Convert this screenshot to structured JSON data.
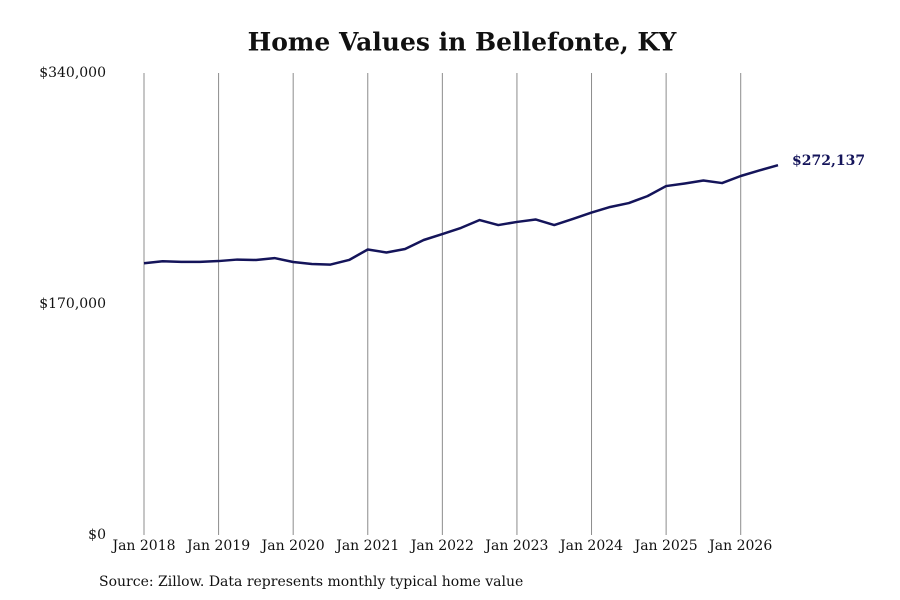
{
  "chart_data": {
    "type": "line",
    "title": "Home Values in Bellefonte, KY",
    "source": "Source: Zillow. Data represents monthly typical home value",
    "x": [
      2018,
      2018.25,
      2018.5,
      2018.75,
      2019,
      2019.25,
      2019.5,
      2019.75,
      2020,
      2020.25,
      2020.5,
      2020.75,
      2021,
      2021.25,
      2021.5,
      2021.75,
      2022,
      2022.25,
      2022.5,
      2022.75,
      2023,
      2023.25,
      2023.5,
      2023.75,
      2024,
      2024.25,
      2024.5,
      2024.75,
      2025,
      2025.25,
      2025.5,
      2025.75,
      2026,
      2026.25,
      2026.5
    ],
    "series": [
      {
        "name": "Home value",
        "color": "#14145a",
        "values": [
          200000,
          201500,
          201000,
          201000,
          201600,
          202700,
          202400,
          203800,
          200900,
          199400,
          199000,
          202400,
          210100,
          207900,
          210500,
          217100,
          221500,
          226000,
          231800,
          228100,
          230400,
          232200,
          228100,
          232600,
          237300,
          241400,
          244300,
          249400,
          256800,
          258700,
          260900,
          259000,
          264200,
          268300,
          272137
        ],
        "value_labels": [
          null,
          null,
          null,
          null,
          null,
          null,
          null,
          null,
          null,
          null,
          null,
          null,
          null,
          null,
          null,
          null,
          null,
          null,
          null,
          null,
          null,
          null,
          null,
          null,
          null,
          null,
          null,
          null,
          null,
          null,
          null,
          null,
          null,
          null,
          "$272,137"
        ]
      }
    ],
    "xlim": [
      2018,
      2026.5
    ],
    "xticks": [
      {
        "value": 2018,
        "label": "Jan 2018"
      },
      {
        "value": 2019,
        "label": "Jan 2019"
      },
      {
        "value": 2020,
        "label": "Jan 2020"
      },
      {
        "value": 2021,
        "label": "Jan 2021"
      },
      {
        "value": 2022,
        "label": "Jan 2022"
      },
      {
        "value": 2023,
        "label": "Jan 2023"
      },
      {
        "value": 2024,
        "label": "Jan 2024"
      },
      {
        "value": 2025,
        "label": "Jan 2025"
      },
      {
        "value": 2026,
        "label": "Jan 2026"
      }
    ],
    "ylim": [
      0,
      340000
    ],
    "yticks": [
      {
        "value": 0,
        "label": "$0"
      },
      {
        "value": 170000,
        "label": "$170,000"
      },
      {
        "value": 340000,
        "label": "$340,000"
      }
    ],
    "grid": "x"
  }
}
